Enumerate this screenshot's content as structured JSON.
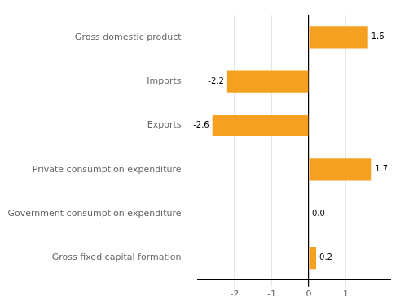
{
  "chart_data": {
    "type": "bar",
    "orientation": "horizontal",
    "categories": [
      "Gross fixed capital formation",
      "Government consumption expenditure",
      "Private consumption expenditure",
      "Exports",
      "Imports",
      "Gross domestic product"
    ],
    "values": [
      0.2,
      0.0,
      1.7,
      -2.6,
      -2.2,
      1.6
    ],
    "value_labels": [
      "0.2",
      "0.0",
      "1.7",
      "-2.6",
      "-2.2",
      "1.6"
    ],
    "data_labels": true,
    "color": "#F5A020",
    "xlim": [
      -3.0,
      2.2
    ],
    "xticks": [
      -2,
      -1,
      0,
      1
    ],
    "grid": true
  }
}
